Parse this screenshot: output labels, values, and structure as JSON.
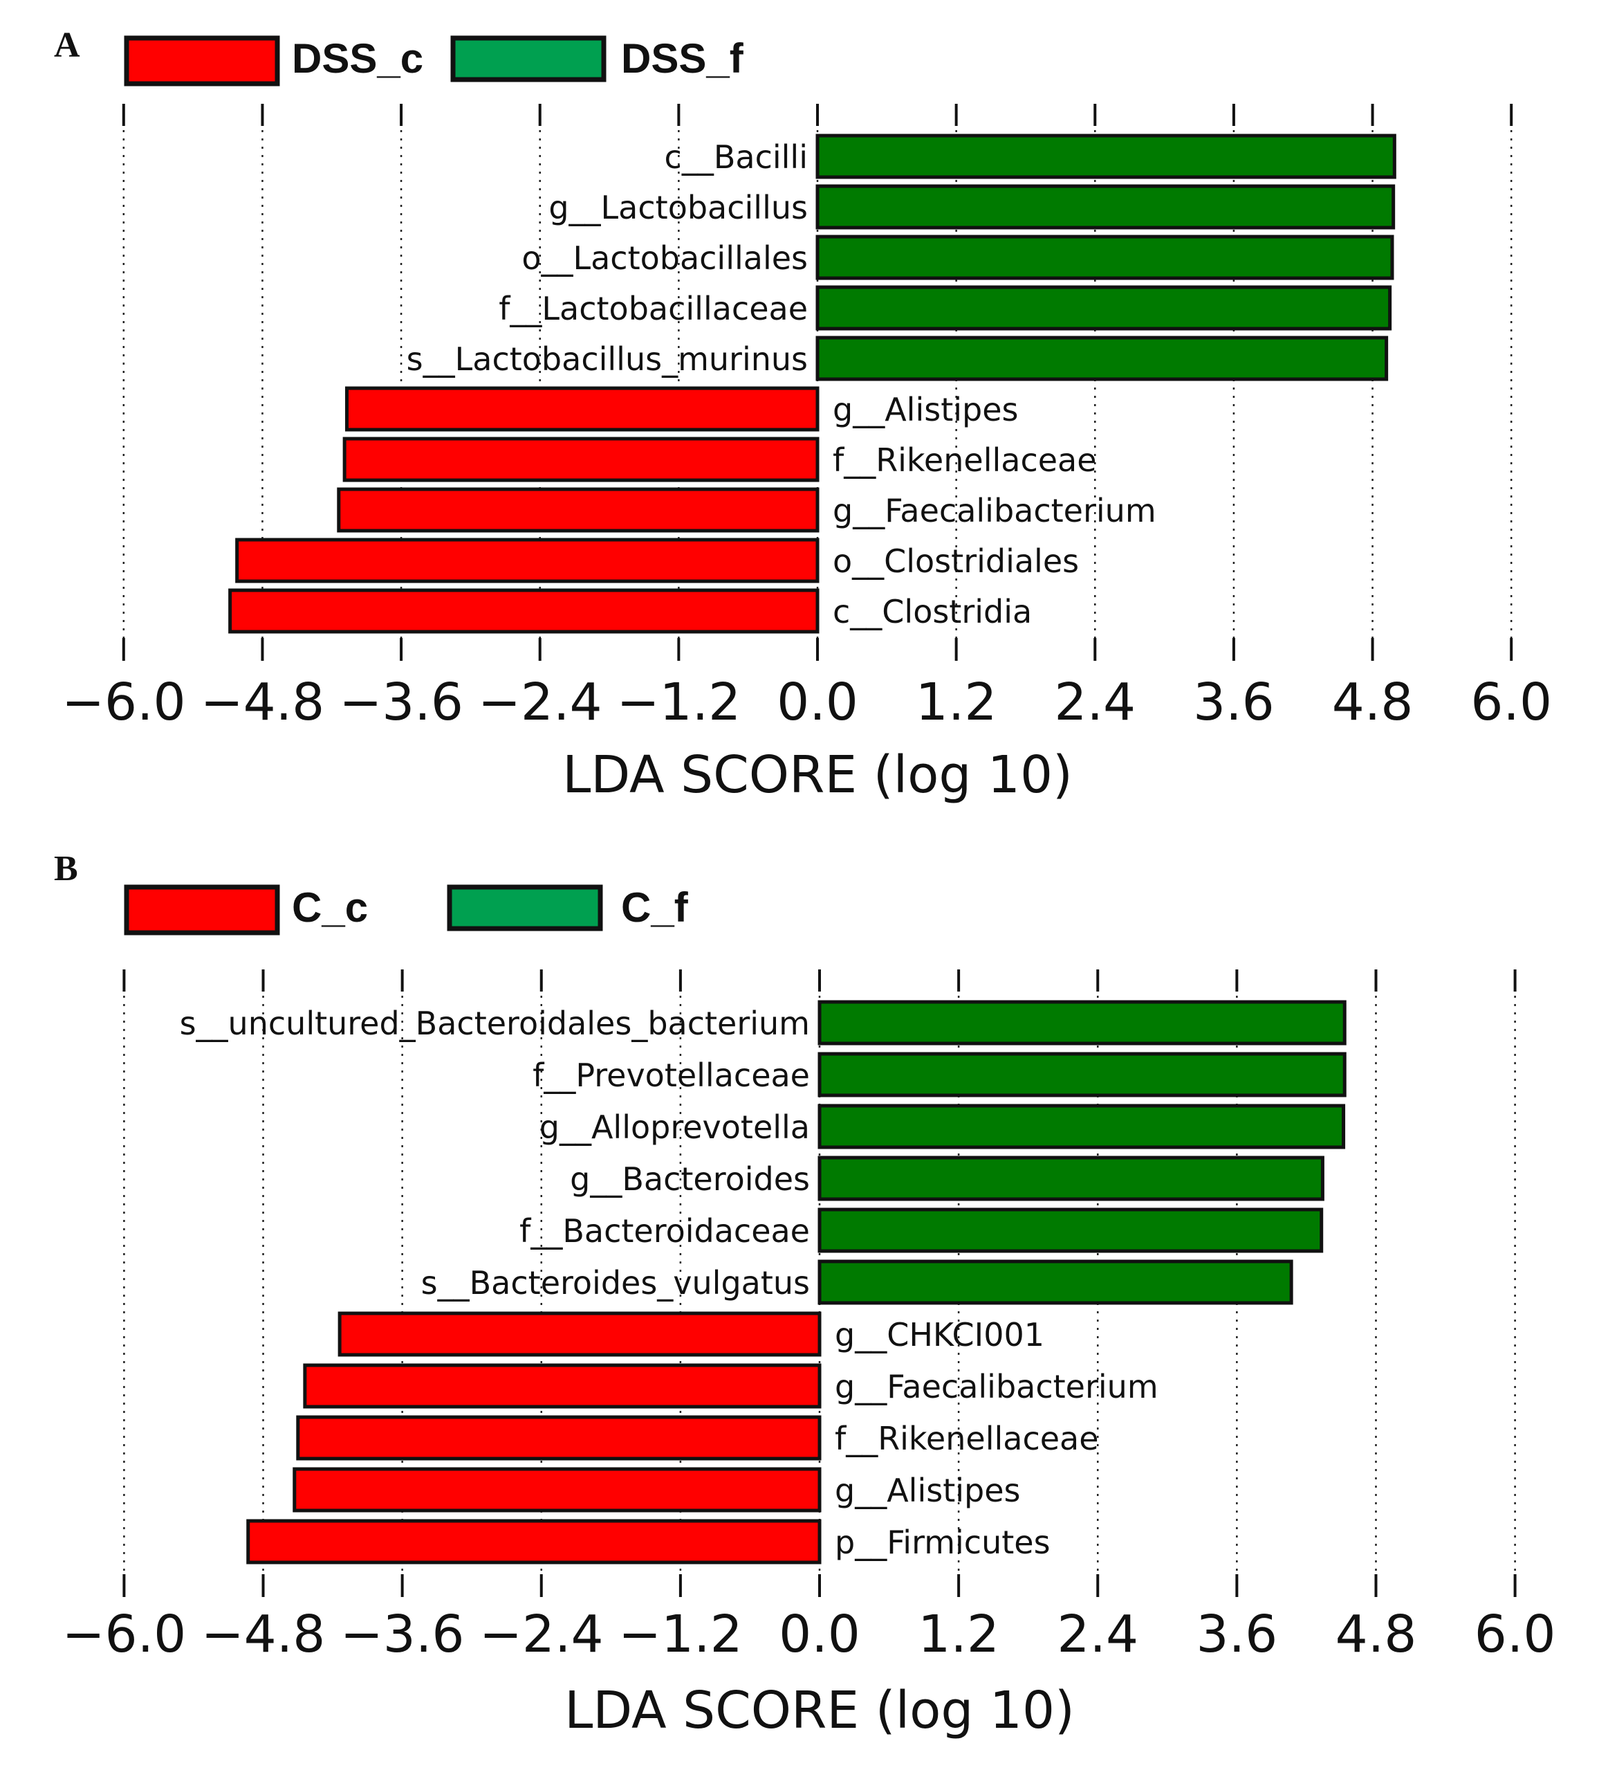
{
  "chart_data": [
    {
      "type": "bar",
      "orientation": "horizontal",
      "panel_label": "A",
      "xlabel": "LDA SCORE (log 10)",
      "xlim": [
        -6.0,
        6.0
      ],
      "ticks": [
        -6.0,
        -4.8,
        -3.6,
        -2.4,
        -1.2,
        0.0,
        1.2,
        2.4,
        3.6,
        4.8,
        6.0
      ],
      "tick_labels": [
        "−6.0",
        "−4.8",
        "−3.6",
        "−2.4",
        "−1.2",
        "0.0",
        "1.2",
        "2.4",
        "3.6",
        "4.8",
        "6.0"
      ],
      "grid": "vertical dotted",
      "legend": [
        {
          "name": "DSS_c",
          "color": "#ff0000"
        },
        {
          "name": "DSS_f",
          "color": "#00a050"
        }
      ],
      "bar_colors": {
        "DSS_c": "#ff0000",
        "DSS_f": "#007a00"
      },
      "categories": [
        "c__Bacilli",
        "g__Lactobacillus",
        "o__Lactobacillales",
        "f__Lactobacillaceae",
        "s__Lactobacillus_murinus",
        "g__Alistipes",
        "f__Rikenellaceae",
        "g__Faecalibacterium",
        "o__Clostridiales",
        "c__Clostridia"
      ],
      "values": [
        4.99,
        4.98,
        4.97,
        4.95,
        4.92,
        -4.07,
        -4.09,
        -4.14,
        -5.02,
        -5.08
      ],
      "groups": [
        "DSS_f",
        "DSS_f",
        "DSS_f",
        "DSS_f",
        "DSS_f",
        "DSS_c",
        "DSS_c",
        "DSS_c",
        "DSS_c",
        "DSS_c"
      ]
    },
    {
      "type": "bar",
      "orientation": "horizontal",
      "panel_label": "B",
      "xlabel": "LDA SCORE (log 10)",
      "xlim": [
        -6.0,
        6.0
      ],
      "ticks": [
        -6.0,
        -4.8,
        -3.6,
        -2.4,
        -1.2,
        0.0,
        1.2,
        2.4,
        3.6,
        4.8,
        6.0
      ],
      "tick_labels": [
        "−6.0",
        "−4.8",
        "−3.6",
        "−2.4",
        "−1.2",
        "0.0",
        "1.2",
        "2.4",
        "3.6",
        "4.8",
        "6.0"
      ],
      "grid": "vertical dotted",
      "legend": [
        {
          "name": "C_c",
          "color": "#ff0000"
        },
        {
          "name": "C_f",
          "color": "#00a050"
        }
      ],
      "bar_colors": {
        "C_c": "#ff0000",
        "C_f": "#007a00"
      },
      "categories": [
        "s__uncultured_Bacteroidales_bacterium",
        "f__Prevotellaceae",
        "g__Alloprevotella",
        "g__Bacteroides",
        "f__Bacteroidaceae",
        "s__Bacteroides_vulgatus",
        "g__CHKCI001",
        "g__Faecalibacterium",
        "f__Rikenellaceae",
        "g__Alistipes",
        "p__Firmicutes"
      ],
      "values": [
        4.53,
        4.53,
        4.52,
        4.34,
        4.33,
        4.07,
        -4.14,
        -4.44,
        -4.5,
        -4.53,
        -4.93
      ],
      "groups": [
        "C_f",
        "C_f",
        "C_f",
        "C_f",
        "C_f",
        "C_f",
        "C_c",
        "C_c",
        "C_c",
        "C_c",
        "C_c"
      ]
    }
  ]
}
